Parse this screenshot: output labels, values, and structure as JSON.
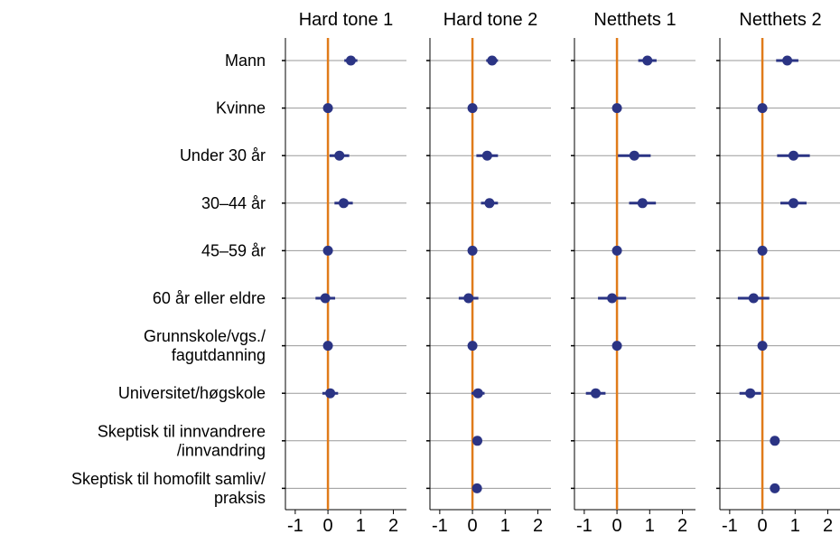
{
  "chart_data": {
    "type": "coefficient-plot",
    "xlim": [
      -1.3,
      2.4
    ],
    "xticks": [
      "-1",
      "0",
      "1",
      "2"
    ],
    "xtick_values": [
      -1,
      0,
      1,
      2
    ],
    "reference_line": 0,
    "colors": {
      "point": "#2b3484",
      "reference": "#e07b1a",
      "grid": "#9a9a9a",
      "axis": "#000000"
    },
    "categories": [
      [
        "Mann"
      ],
      [
        "Kvinne"
      ],
      [
        "Under 30 år"
      ],
      [
        "30–44 år"
      ],
      [
        "45–59 år"
      ],
      [
        "60 år eller eldre"
      ],
      [
        "Grunnskole/vgs./",
        "fagutdanning"
      ],
      [
        "Universitet/høgskole"
      ],
      [
        "Skeptisk til innvandrere",
        "/innvandring"
      ],
      [
        "Skeptisk til homofilt samliv/",
        "praksis"
      ]
    ],
    "panels": [
      {
        "title": "Hard tone 1",
        "points": [
          {
            "est": 0.7,
            "lo": 0.5,
            "hi": 0.9
          },
          {
            "est": 0.0,
            "lo": 0.0,
            "hi": 0.0
          },
          {
            "est": 0.35,
            "lo": 0.05,
            "hi": 0.65
          },
          {
            "est": 0.48,
            "lo": 0.2,
            "hi": 0.76
          },
          {
            "est": 0.0,
            "lo": 0.0,
            "hi": 0.0
          },
          {
            "est": -0.08,
            "lo": -0.38,
            "hi": 0.22
          },
          {
            "est": 0.0,
            "lo": 0.0,
            "hi": 0.0
          },
          {
            "est": 0.07,
            "lo": -0.17,
            "hi": 0.31
          },
          null,
          null
        ]
      },
      {
        "title": "Hard tone 2",
        "points": [
          {
            "est": 0.6,
            "lo": 0.42,
            "hi": 0.78
          },
          {
            "est": 0.0,
            "lo": 0.0,
            "hi": 0.0
          },
          {
            "est": 0.45,
            "lo": 0.12,
            "hi": 0.78
          },
          {
            "est": 0.52,
            "lo": 0.26,
            "hi": 0.78
          },
          {
            "est": 0.0,
            "lo": 0.0,
            "hi": 0.0
          },
          {
            "est": -0.12,
            "lo": -0.42,
            "hi": 0.18
          },
          {
            "est": 0.0,
            "lo": 0.0,
            "hi": 0.0
          },
          {
            "est": 0.17,
            "lo": -0.03,
            "hi": 0.37
          },
          {
            "est": 0.15,
            "lo": 0.07,
            "hi": 0.23
          },
          {
            "est": 0.14,
            "lo": 0.06,
            "hi": 0.22
          }
        ]
      },
      {
        "title": "Netthets 1",
        "points": [
          {
            "est": 0.93,
            "lo": 0.65,
            "hi": 1.21
          },
          {
            "est": 0.0,
            "lo": 0.0,
            "hi": 0.0
          },
          {
            "est": 0.53,
            "lo": 0.03,
            "hi": 1.03
          },
          {
            "est": 0.78,
            "lo": 0.37,
            "hi": 1.19
          },
          {
            "est": 0.0,
            "lo": 0.0,
            "hi": 0.0
          },
          {
            "est": -0.15,
            "lo": -0.58,
            "hi": 0.28
          },
          {
            "est": 0.0,
            "lo": 0.0,
            "hi": 0.0
          },
          {
            "est": -0.65,
            "lo": -0.95,
            "hi": -0.35
          },
          null,
          null
        ]
      },
      {
        "title": "Netthets 2",
        "points": [
          {
            "est": 0.76,
            "lo": 0.42,
            "hi": 1.1
          },
          {
            "est": 0.0,
            "lo": 0.0,
            "hi": 0.0
          },
          {
            "est": 0.95,
            "lo": 0.45,
            "hi": 1.45
          },
          {
            "est": 0.95,
            "lo": 0.55,
            "hi": 1.35
          },
          {
            "est": 0.0,
            "lo": 0.0,
            "hi": 0.0
          },
          {
            "est": -0.27,
            "lo": -0.75,
            "hi": 0.21
          },
          {
            "est": 0.0,
            "lo": 0.0,
            "hi": 0.0
          },
          {
            "est": -0.37,
            "lo": -0.7,
            "hi": -0.04
          },
          {
            "est": 0.38,
            "lo": 0.3,
            "hi": 0.46
          },
          {
            "est": 0.38,
            "lo": 0.28,
            "hi": 0.48
          }
        ]
      }
    ]
  }
}
